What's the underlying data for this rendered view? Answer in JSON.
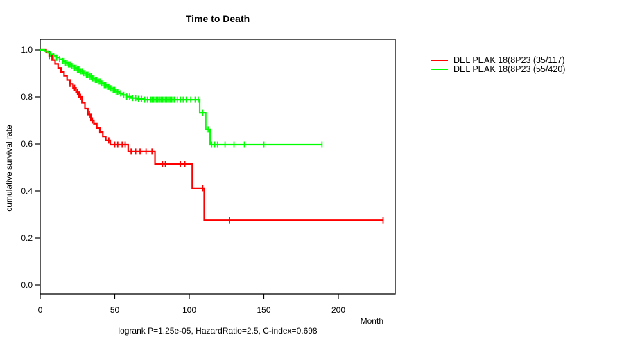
{
  "chart_data": {
    "type": "line",
    "subtype": "kaplan-meier-step-survival",
    "title": "Time to Death",
    "xlabel": "Month",
    "ylabel": "cumulative survival rate",
    "footnote": "logrank P=1.25e-05, HazardRatio=2.5, C-index=0.698",
    "xlim": [
      0,
      238
    ],
    "ylim": [
      0.0,
      1.0
    ],
    "xticks": [
      0,
      50,
      100,
      150,
      200
    ],
    "yticks": [
      0.0,
      0.2,
      0.4,
      0.6,
      0.8,
      1.0
    ],
    "grid": false,
    "legend_position": "right-outside",
    "axis_color": "#000000",
    "series": [
      {
        "name": "DEL PEAK 18(8P23 (35/117)",
        "color": "#ff0000",
        "steps": [
          [
            0,
            1.0
          ],
          [
            4,
            0.991
          ],
          [
            6,
            0.974
          ],
          [
            8,
            0.957
          ],
          [
            10,
            0.94
          ],
          [
            12,
            0.923
          ],
          [
            14,
            0.906
          ],
          [
            16,
            0.889
          ],
          [
            18,
            0.872
          ],
          [
            20,
            0.855
          ],
          [
            22,
            0.838
          ],
          [
            24,
            0.82
          ],
          [
            26,
            0.8
          ],
          [
            28,
            0.775
          ],
          [
            30,
            0.75
          ],
          [
            32,
            0.725
          ],
          [
            34,
            0.7
          ],
          [
            36,
            0.686
          ],
          [
            38,
            0.668
          ],
          [
            40,
            0.65
          ],
          [
            42,
            0.632
          ],
          [
            44,
            0.615
          ],
          [
            47,
            0.597
          ],
          [
            59,
            0.568
          ],
          [
            77,
            0.515
          ],
          [
            102,
            0.412
          ],
          [
            110,
            0.276
          ],
          [
            230,
            0.276
          ]
        ],
        "censor_months": [
          6,
          20,
          23,
          25,
          27,
          33,
          35,
          46,
          50,
          52,
          55,
          57,
          61,
          64,
          67,
          71,
          75,
          82,
          84,
          94,
          97,
          109,
          127,
          230
        ]
      },
      {
        "name": "DEL PEAK 18(8P23 (55/420)",
        "color": "#00ff00",
        "steps": [
          [
            0,
            1.0
          ],
          [
            3,
            0.995
          ],
          [
            5,
            0.988
          ],
          [
            7,
            0.981
          ],
          [
            9,
            0.974
          ],
          [
            11,
            0.967
          ],
          [
            13,
            0.96
          ],
          [
            15,
            0.952
          ],
          [
            17,
            0.945
          ],
          [
            19,
            0.938
          ],
          [
            21,
            0.931
          ],
          [
            23,
            0.923
          ],
          [
            25,
            0.916
          ],
          [
            27,
            0.909
          ],
          [
            29,
            0.901
          ],
          [
            31,
            0.894
          ],
          [
            33,
            0.887
          ],
          [
            35,
            0.879
          ],
          [
            37,
            0.872
          ],
          [
            39,
            0.865
          ],
          [
            41,
            0.857
          ],
          [
            43,
            0.85
          ],
          [
            45,
            0.843
          ],
          [
            47,
            0.836
          ],
          [
            49,
            0.829
          ],
          [
            51,
            0.822
          ],
          [
            53,
            0.815
          ],
          [
            55,
            0.808
          ],
          [
            58,
            0.801
          ],
          [
            61,
            0.795
          ],
          [
            65,
            0.791
          ],
          [
            70,
            0.788
          ],
          [
            107,
            0.732
          ],
          [
            111,
            0.662
          ],
          [
            114,
            0.597
          ],
          [
            189,
            0.597
          ]
        ],
        "censor_months": [
          7,
          9,
          11,
          13,
          15,
          16,
          17,
          18,
          19,
          20,
          21,
          22,
          23,
          24,
          25,
          26,
          27,
          28,
          29,
          30,
          31,
          32,
          33,
          34,
          35,
          36,
          37,
          38,
          39,
          40,
          41,
          42,
          43,
          44,
          45,
          46,
          47,
          48,
          49,
          50,
          51,
          52,
          54,
          56,
          58,
          60,
          62,
          64,
          66,
          68,
          70,
          72,
          74,
          75,
          76,
          77,
          78,
          79,
          80,
          81,
          82,
          83,
          84,
          85,
          86,
          87,
          88,
          89,
          90,
          92,
          94,
          96,
          98,
          101,
          104,
          106,
          109,
          112,
          113,
          115,
          117,
          119,
          124,
          130,
          137,
          150,
          189
        ]
      }
    ]
  }
}
